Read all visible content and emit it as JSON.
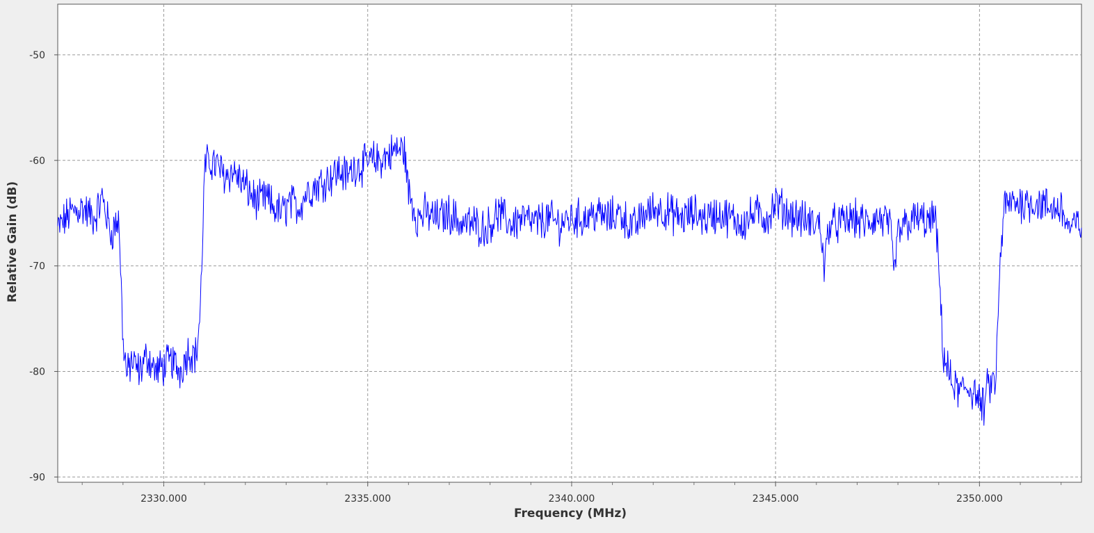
{
  "chart_data": {
    "type": "line",
    "title": "",
    "xlabel": "Frequency (MHz)",
    "ylabel": "Relative Gain (dB)",
    "xlim": [
      2327.4,
      2352.5
    ],
    "ylim": [
      -90.5,
      -45.2
    ],
    "x_ticks": [
      2330,
      2335,
      2340,
      2345,
      2350
    ],
    "x_tick_labels": [
      "2330.000",
      "2335.000",
      "2340.000",
      "2345.000",
      "2350.000"
    ],
    "x_minor_step": 1,
    "y_ticks": [
      -50,
      -60,
      -70,
      -80,
      -90
    ],
    "y_tick_labels": [
      "-50",
      "-60",
      "-70",
      "-80",
      "-90"
    ],
    "grid": true,
    "legend": "none",
    "series": [
      {
        "color": "#0000ff",
        "x": [
          2327.4,
          2327.7,
          2328.0,
          2328.3,
          2328.5,
          2328.7,
          2328.9,
          2329.0,
          2329.1,
          2329.2,
          2329.4,
          2329.6,
          2329.8,
          2330.0,
          2330.2,
          2330.4,
          2330.6,
          2330.8,
          2330.9,
          2331.0,
          2331.1,
          2331.3,
          2331.5,
          2331.7,
          2331.9,
          2332.1,
          2332.3,
          2332.5,
          2332.7,
          2332.9,
          2333.1,
          2333.3,
          2333.5,
          2333.7,
          2333.9,
          2334.1,
          2334.3,
          2334.5,
          2334.7,
          2334.9,
          2335.1,
          2335.3,
          2335.5,
          2335.7,
          2335.9,
          2336.0,
          2336.1,
          2336.2,
          2336.4,
          2336.7,
          2337.0,
          2337.3,
          2337.6,
          2337.9,
          2338.2,
          2338.5,
          2338.8,
          2339.1,
          2339.4,
          2339.7,
          2340.0,
          2340.3,
          2340.6,
          2340.9,
          2341.2,
          2341.5,
          2341.8,
          2342.1,
          2342.4,
          2342.7,
          2343.0,
          2343.3,
          2343.6,
          2343.9,
          2344.2,
          2344.5,
          2344.8,
          2345.0,
          2345.3,
          2345.6,
          2345.9,
          2346.1,
          2346.2,
          2346.3,
          2346.6,
          2346.9,
          2347.2,
          2347.5,
          2347.8,
          2347.9,
          2348.0,
          2348.2,
          2348.5,
          2348.8,
          2348.9,
          2349.0,
          2349.1,
          2349.3,
          2349.5,
          2349.7,
          2349.9,
          2350.0,
          2350.1,
          2350.2,
          2350.4,
          2350.5,
          2350.6,
          2350.8,
          2351.1,
          2351.4,
          2351.7,
          2352.0,
          2352.2,
          2352.5
        ],
        "y": [
          -66.5,
          -65.0,
          -64.5,
          -65.5,
          -63.5,
          -67.0,
          -65.5,
          -77.0,
          -80.5,
          -79.0,
          -80.0,
          -78.5,
          -80.0,
          -79.5,
          -79.0,
          -80.0,
          -78.0,
          -78.5,
          -74.0,
          -61.0,
          -60.0,
          -60.5,
          -61.5,
          -61.0,
          -62.0,
          -63.0,
          -64.0,
          -63.5,
          -64.5,
          -65.0,
          -64.0,
          -64.5,
          -63.0,
          -62.5,
          -62.0,
          -61.5,
          -61.0,
          -61.5,
          -60.5,
          -60.5,
          -60.0,
          -60.0,
          -59.5,
          -59.0,
          -59.0,
          -63.0,
          -64.0,
          -65.5,
          -65.0,
          -65.5,
          -65.0,
          -66.0,
          -66.0,
          -66.5,
          -65.0,
          -66.0,
          -65.5,
          -66.0,
          -65.5,
          -66.0,
          -65.5,
          -65.5,
          -65.0,
          -65.5,
          -65.0,
          -66.5,
          -65.0,
          -64.5,
          -65.0,
          -65.5,
          -65.0,
          -65.5,
          -65.0,
          -65.5,
          -66.0,
          -65.0,
          -65.5,
          -64.0,
          -65.0,
          -65.5,
          -66.0,
          -66.0,
          -70.5,
          -66.0,
          -66.0,
          -65.5,
          -66.0,
          -65.5,
          -66.0,
          -71.0,
          -67.0,
          -66.0,
          -65.5,
          -66.0,
          -65.0,
          -70.0,
          -78.0,
          -81.0,
          -82.0,
          -81.5,
          -82.0,
          -83.0,
          -83.5,
          -81.5,
          -81.0,
          -70.0,
          -64.5,
          -64.0,
          -64.0,
          -64.0,
          -64.5,
          -64.5,
          -66.5,
          -66.0
        ],
        "values_note_free": true
      }
    ]
  }
}
